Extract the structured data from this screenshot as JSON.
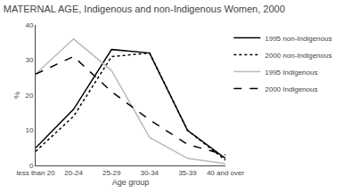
{
  "chart_data": {
    "type": "line",
    "title": "MATERNAL AGE, Indigenous and non-Indigenous Women, 2000",
    "x_label": "Age group",
    "y_label": "%",
    "categories": [
      "less than 20",
      "20-24",
      "25-29",
      "30-34",
      "35-39",
      "40 and over"
    ],
    "series": [
      {
        "name": "1995 non-Indigenous",
        "color": "#000000",
        "line_style": "solid",
        "values": [
          5,
          16,
          33,
          32,
          10,
          2
        ]
      },
      {
        "name": "2000 non-Indigenous",
        "color": "#000000",
        "line_style": "dotted",
        "values": [
          4,
          14,
          31,
          32,
          10,
          1.5
        ]
      },
      {
        "name": "1995 Indigenous",
        "color": "#bbbbbb",
        "line_style": "solid",
        "values": [
          26,
          36,
          27,
          8,
          2,
          0.5
        ]
      },
      {
        "name": "2000 Indigenous",
        "color": "#000000",
        "line_style": "dashed",
        "values": [
          26,
          31,
          21,
          13,
          6,
          3
        ]
      }
    ],
    "ylim": [
      0,
      40
    ],
    "yticks": [
      0,
      10,
      20,
      30,
      40
    ],
    "grid": false,
    "legend": "upper right"
  }
}
